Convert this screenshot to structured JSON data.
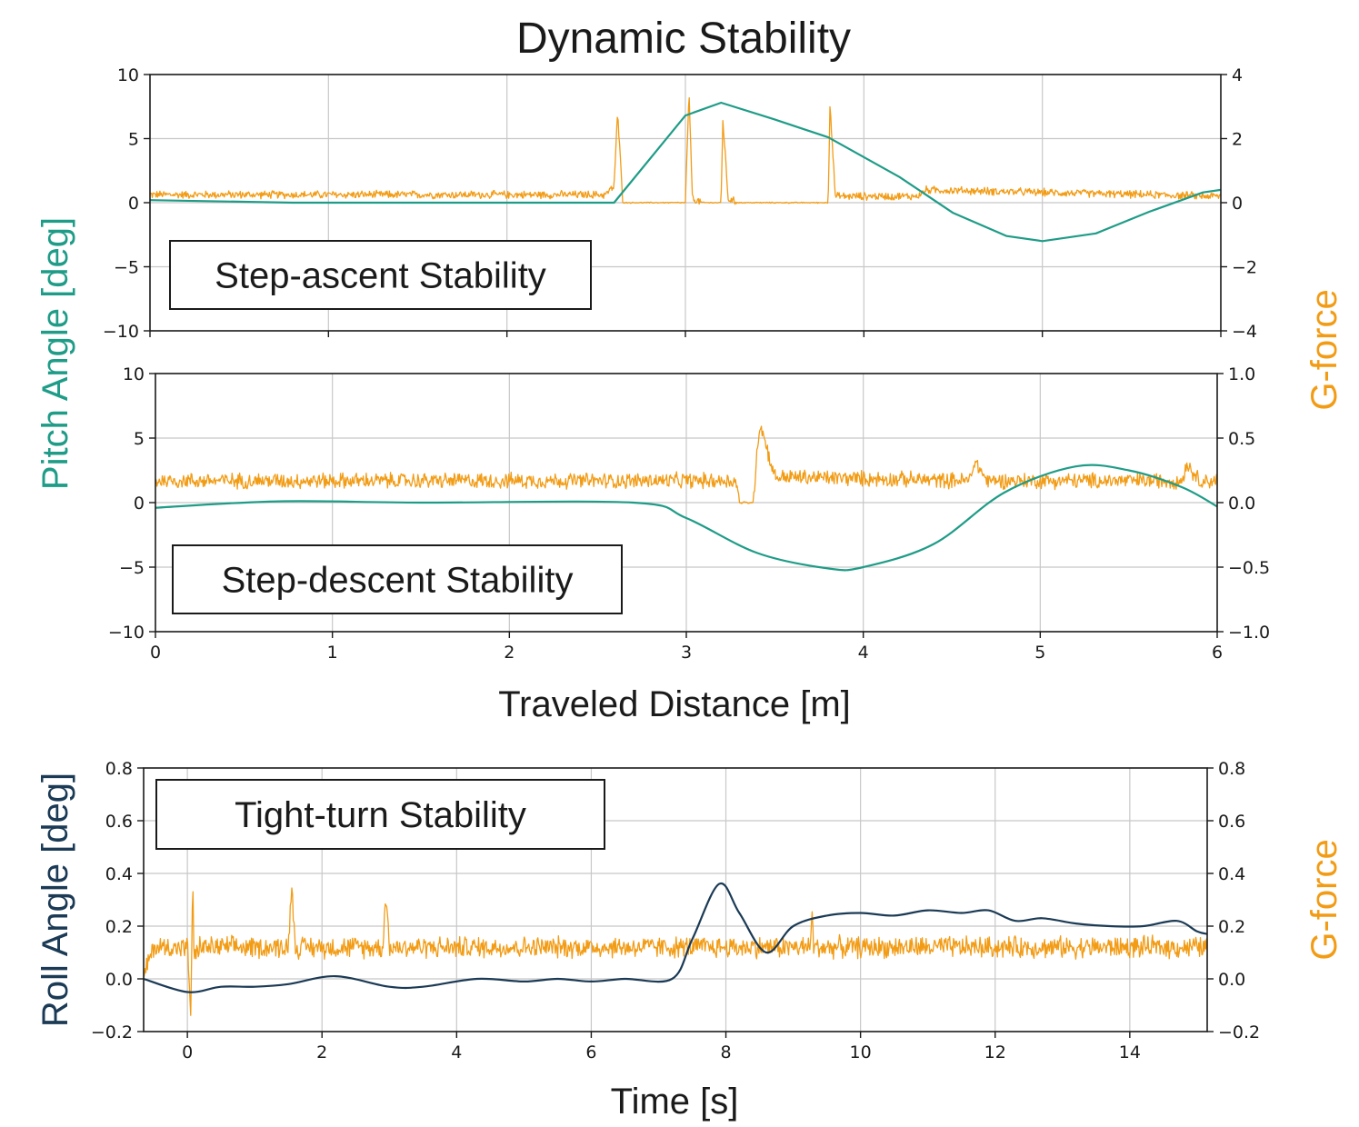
{
  "title": "Dynamic Stability",
  "colors": {
    "pitch": "#1f9c87",
    "gforce": "#f29c16",
    "roll": "#1b3a55",
    "axis": "#1a1a1a",
    "grid": "#c8c8c8"
  },
  "shared_labels": {
    "pitch_ylabel": "Pitch Angle [deg]",
    "gforce_ylabel": "G-force",
    "distance_xlabel": "Traveled Distance [m]"
  },
  "chart_data": [
    {
      "type": "line",
      "name": "step-ascent",
      "annotation": "Step-ascent Stability",
      "xlim": [
        0,
        6
      ],
      "ylim_left": [
        -10,
        10
      ],
      "ylim_right": [
        -4,
        4
      ],
      "x_ticks": [
        "0",
        "1",
        "2",
        "3",
        "4",
        "5",
        "6"
      ],
      "x_tick_values": [
        0,
        1,
        2,
        3,
        4,
        5,
        6
      ],
      "y_left_ticks": [
        "10",
        "5",
        "0",
        "−5",
        "−10"
      ],
      "y_left_values": [
        10,
        5,
        0,
        -5,
        -10
      ],
      "y_right_ticks": [
        "4",
        "2",
        "0",
        "−2",
        "−4"
      ],
      "y_right_values": [
        4,
        2,
        0,
        -2,
        -4
      ],
      "series": [
        {
          "name": "Pitch Angle",
          "axis": "left",
          "color_key": "pitch",
          "x": [
            0,
            0.8,
            1.5,
            2.6,
            3.0,
            3.2,
            3.5,
            3.8,
            4.2,
            4.5,
            4.8,
            5.0,
            5.3,
            5.6,
            5.9,
            6.0
          ],
          "y": [
            0.2,
            0.0,
            0.0,
            0.0,
            6.8,
            7.8,
            6.5,
            5.1,
            2.0,
            -0.8,
            -2.6,
            -3.0,
            -2.4,
            -0.7,
            0.8,
            1.0
          ]
        },
        {
          "name": "G-force",
          "axis": "right",
          "color_key": "gforce",
          "x": [
            0,
            2.55,
            2.6,
            2.62,
            2.65,
            2.7,
            3.0,
            3.02,
            3.04,
            3.1,
            3.2,
            3.21,
            3.24,
            3.3,
            3.8,
            3.81,
            3.84,
            3.9,
            4.3,
            4.35,
            6.0
          ],
          "y": [
            0.25,
            0.25,
            0.5,
            2.8,
            0.0,
            0.0,
            0.0,
            3.4,
            0.1,
            0.0,
            0.0,
            2.6,
            0.1,
            0.0,
            0.0,
            3.1,
            0.2,
            0.2,
            0.2,
            0.4,
            0.2
          ],
          "noise_amplitude": 0.12
        }
      ]
    },
    {
      "type": "line",
      "name": "step-descent",
      "annotation": "Step-descent Stability",
      "xlim": [
        0,
        6
      ],
      "ylim_left": [
        -10,
        10
      ],
      "ylim_right": [
        -1.0,
        1.0
      ],
      "x_ticks": [
        "0",
        "1",
        "2",
        "3",
        "4",
        "5",
        "6"
      ],
      "x_tick_values": [
        0,
        1,
        2,
        3,
        4,
        5,
        6
      ],
      "y_left_ticks": [
        "10",
        "5",
        "0",
        "−5",
        "−10"
      ],
      "y_left_values": [
        10,
        5,
        0,
        -5,
        -10
      ],
      "y_right_ticks": [
        "1.0",
        "0.5",
        "0.0",
        "−0.5",
        "−1.0"
      ],
      "y_right_values": [
        1.0,
        0.5,
        0.0,
        -0.5,
        -1.0
      ],
      "xlabel": "Traveled Distance [m]",
      "series": [
        {
          "name": "Pitch Angle",
          "axis": "left",
          "color_key": "pitch",
          "x": [
            0,
            0.7,
            1.5,
            2.7,
            3.0,
            3.4,
            3.8,
            4.0,
            4.4,
            4.8,
            5.2,
            5.5,
            5.8,
            6.0
          ],
          "y": [
            -0.4,
            0.1,
            0.0,
            0.0,
            -1.2,
            -3.9,
            -5.1,
            -5.0,
            -3.2,
            0.8,
            2.8,
            2.5,
            1.2,
            -0.3
          ],
          "smooth": true
        },
        {
          "name": "G-force",
          "axis": "right",
          "color_key": "gforce",
          "x": [
            0,
            3.28,
            3.3,
            3.38,
            3.4,
            3.42,
            3.5,
            4.6,
            4.63,
            4.7,
            5.8,
            5.83,
            5.9,
            6.0
          ],
          "y": [
            0.17,
            0.17,
            0.0,
            0.0,
            0.45,
            0.6,
            0.2,
            0.17,
            0.32,
            0.17,
            0.17,
            0.3,
            0.17,
            0.17
          ],
          "noise_amplitude": 0.06
        }
      ]
    },
    {
      "type": "line",
      "name": "tight-turn",
      "annotation": "Tight-turn Stability",
      "xlim": [
        -0.65,
        15.15
      ],
      "ylim_left": [
        -0.2,
        0.8
      ],
      "ylim_right": [
        -0.2,
        0.8
      ],
      "x_ticks": [
        "0",
        "2",
        "4",
        "6",
        "8",
        "10",
        "12",
        "14"
      ],
      "x_tick_values": [
        0,
        2,
        4,
        6,
        8,
        10,
        12,
        14
      ],
      "y_left_ticks": [
        "0.8",
        "0.6",
        "0.4",
        "0.2",
        "0.0",
        "−0.2"
      ],
      "y_left_values": [
        0.8,
        0.6,
        0.4,
        0.2,
        0.0,
        -0.2
      ],
      "y_right_ticks": [
        "0.8",
        "0.6",
        "0.4",
        "0.2",
        "0.0",
        "−0.2"
      ],
      "y_right_values": [
        0.8,
        0.6,
        0.4,
        0.2,
        0.0,
        -0.2
      ],
      "xlabel": "Time [s]",
      "ylabel_left": "Roll Angle [deg]",
      "ylabel_right": "G-force",
      "series": [
        {
          "name": "Roll Angle",
          "axis": "left",
          "color_key": "roll",
          "x": [
            -0.65,
            0.0,
            0.5,
            1.0,
            1.5,
            2.2,
            3.0,
            3.5,
            4.3,
            5.0,
            5.5,
            6.0,
            6.5,
            7.2,
            7.5,
            7.9,
            8.2,
            8.6,
            9.0,
            9.5,
            10.0,
            10.5,
            11.0,
            11.5,
            11.9,
            12.3,
            12.7,
            13.2,
            13.7,
            14.2,
            14.7,
            15.0,
            15.15
          ],
          "y": [
            0.0,
            -0.05,
            -0.03,
            -0.03,
            -0.02,
            0.01,
            -0.03,
            -0.03,
            0.0,
            -0.01,
            0.0,
            -0.01,
            0.0,
            0.0,
            0.15,
            0.36,
            0.25,
            0.1,
            0.2,
            0.24,
            0.25,
            0.24,
            0.26,
            0.25,
            0.26,
            0.22,
            0.23,
            0.21,
            0.2,
            0.2,
            0.22,
            0.18,
            0.17
          ],
          "smooth": true
        },
        {
          "name": "G-force",
          "axis": "right",
          "color_key": "gforce",
          "x": [
            -0.65,
            -0.6,
            -0.5,
            0.0,
            0.05,
            0.08,
            0.1,
            0.15,
            1.5,
            1.55,
            1.6,
            2.9,
            2.95,
            3.0,
            9.25,
            9.28,
            9.3,
            15.15
          ],
          "y": [
            0.0,
            0.05,
            0.12,
            0.12,
            -0.12,
            0.37,
            0.05,
            0.12,
            0.12,
            0.37,
            0.12,
            0.12,
            0.32,
            0.12,
            0.12,
            0.26,
            0.12,
            0.12
          ],
          "noise_amplitude": 0.04
        }
      ]
    }
  ]
}
